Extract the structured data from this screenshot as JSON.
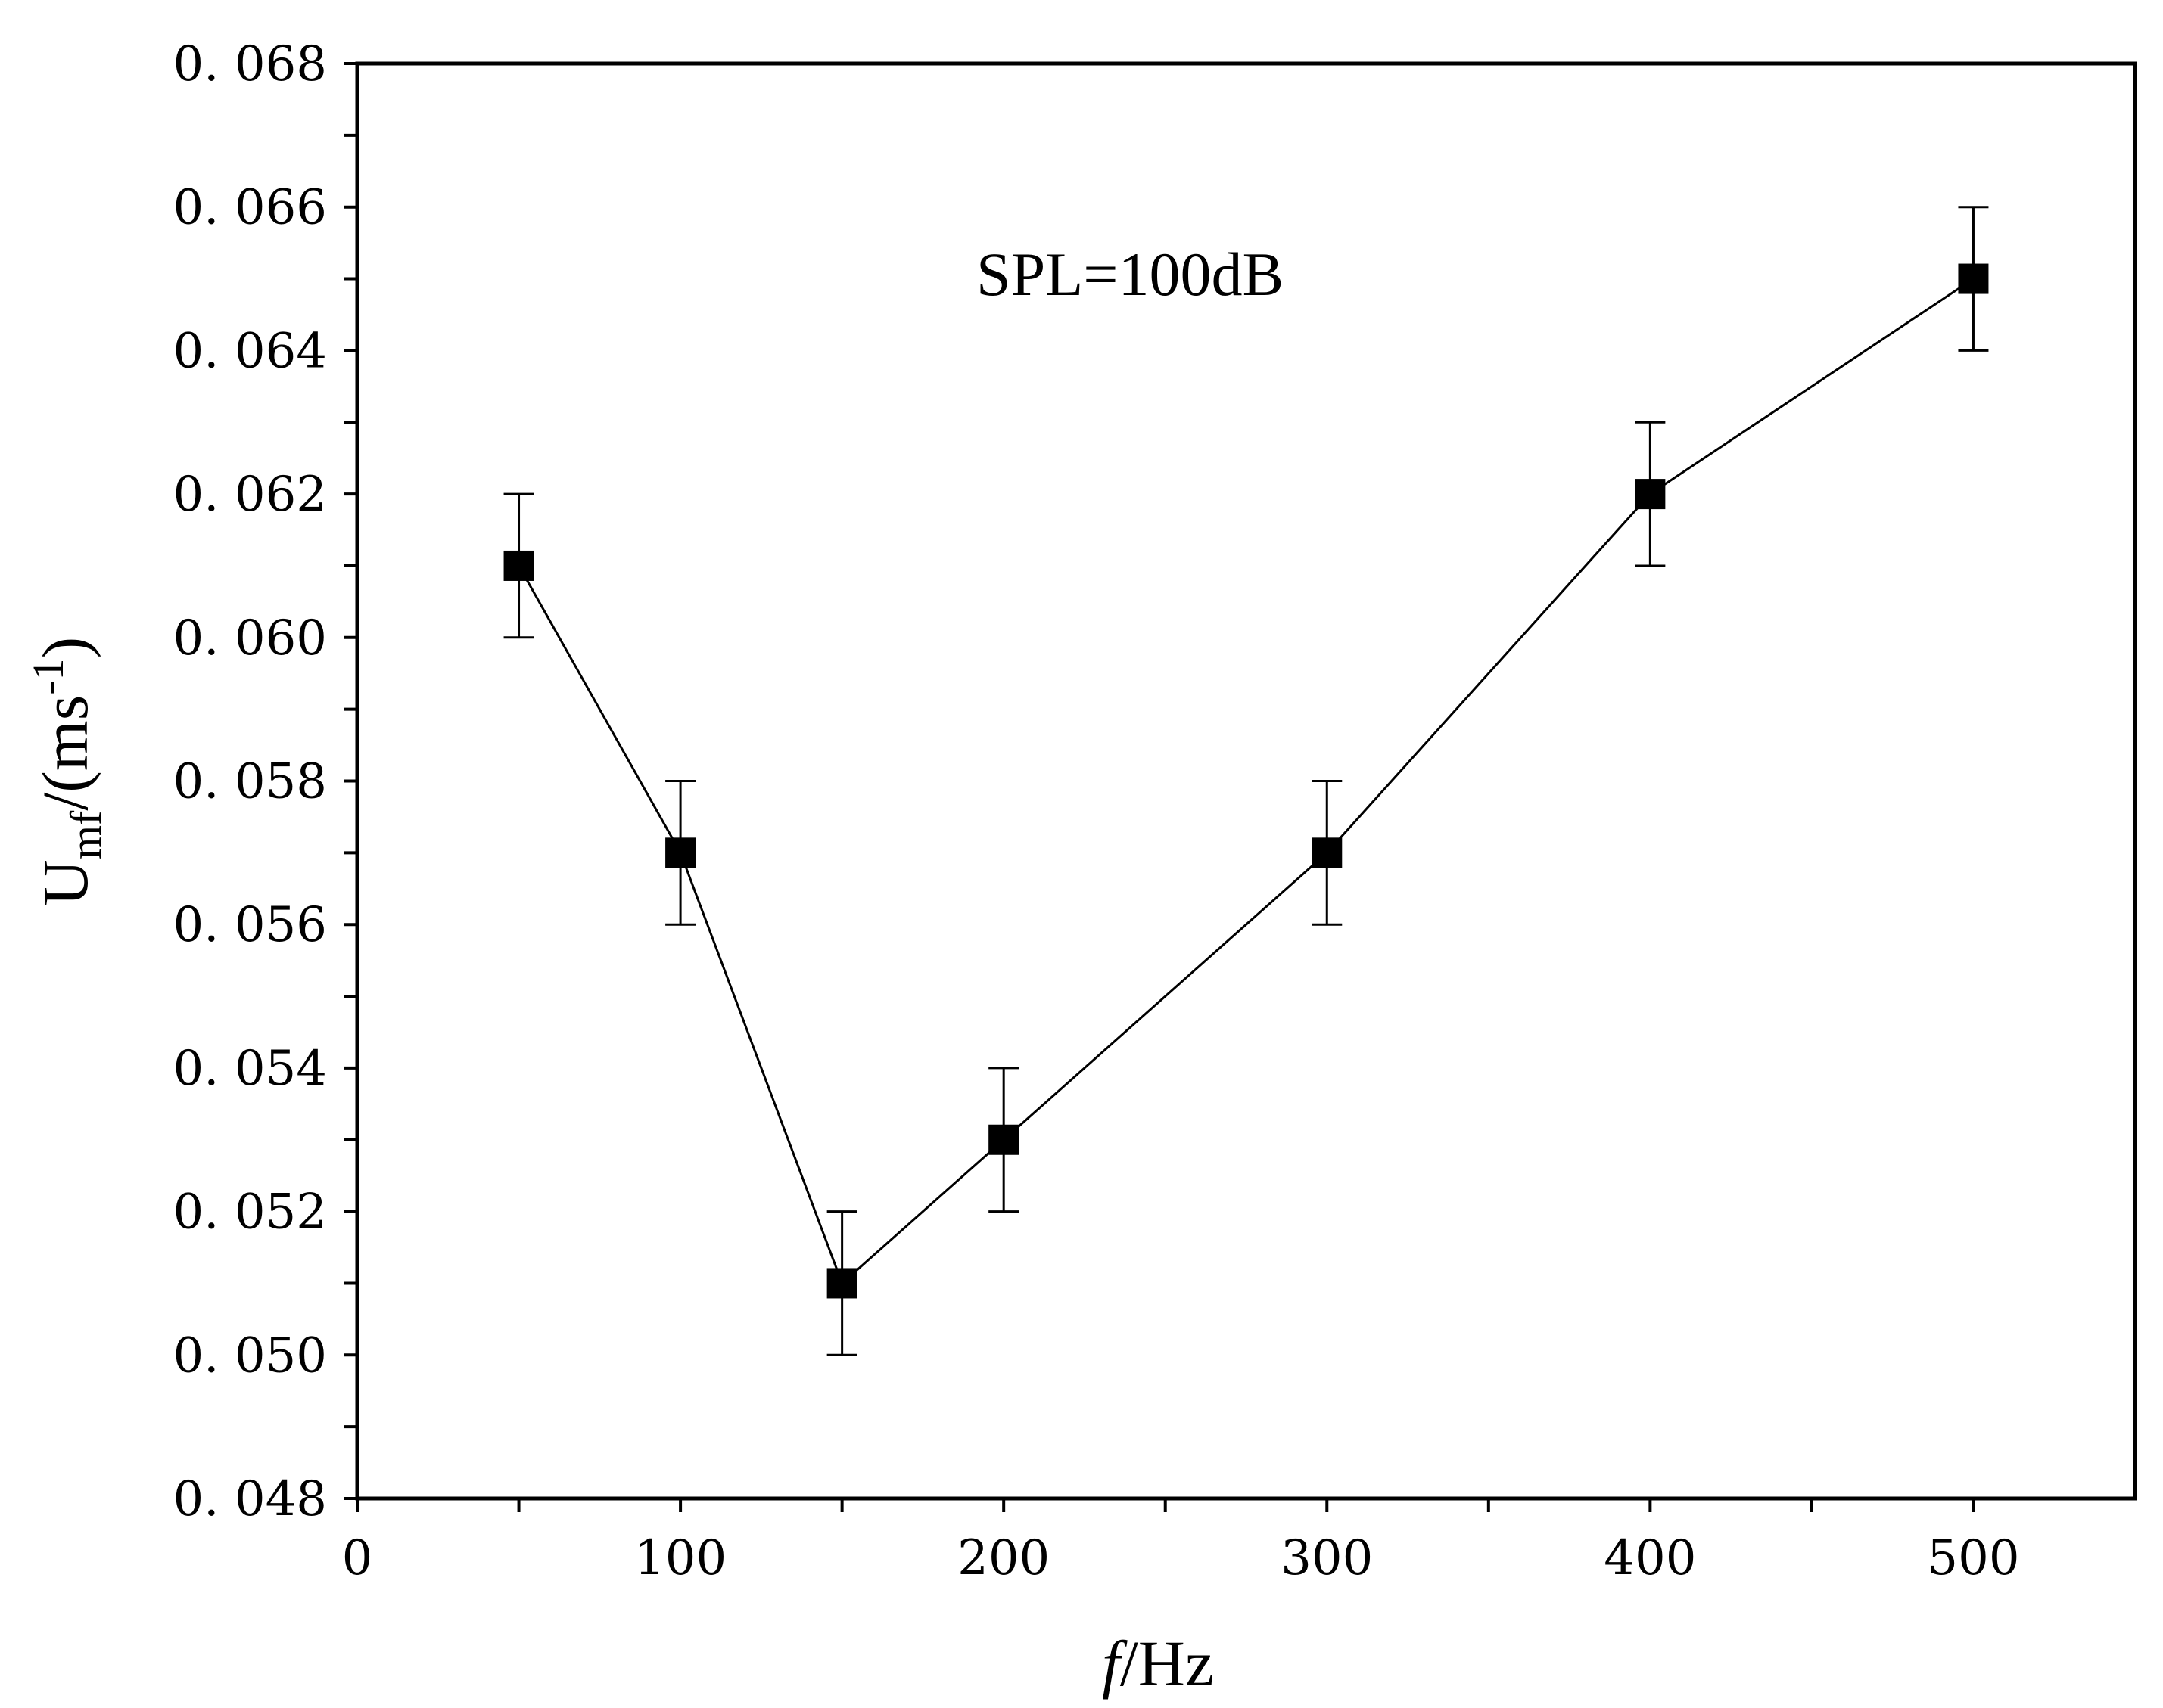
{
  "chart_data": {
    "type": "line",
    "title": "",
    "annotation": "SPL=100dB",
    "xlabel": {
      "italic": "f",
      "rest": "/Hz"
    },
    "ylabel": {
      "main": "U",
      "sub": "mf",
      "mid": "/(ms",
      "sup": "-1",
      "end": ")"
    },
    "xlim": [
      0,
      550
    ],
    "ylim": [
      0.048,
      0.068
    ],
    "x_ticks": [
      0,
      100,
      200,
      300,
      400,
      500
    ],
    "x_tick_labels": [
      "0",
      "100",
      "200",
      "300",
      "400",
      "500"
    ],
    "y_ticks": [
      0.048,
      0.05,
      0.052,
      0.054,
      0.056,
      0.058,
      0.06,
      0.062,
      0.064,
      0.066,
      0.068
    ],
    "y_tick_labels": [
      "0. 048",
      "0. 050",
      "0. 052",
      "0. 054",
      "0. 056",
      "0. 058",
      "0. 060",
      "0. 062",
      "0. 064",
      "0. 066",
      "0. 068"
    ],
    "series": [
      {
        "name": "Umf",
        "marker": "square",
        "color": "#000000",
        "x": [
          50,
          100,
          150,
          200,
          300,
          400,
          500
        ],
        "y": [
          0.061,
          0.057,
          0.051,
          0.053,
          0.057,
          0.062,
          0.065
        ],
        "error": [
          0.001,
          0.001,
          0.001,
          0.001,
          0.001,
          0.001,
          0.001
        ]
      }
    ],
    "grid": false
  }
}
